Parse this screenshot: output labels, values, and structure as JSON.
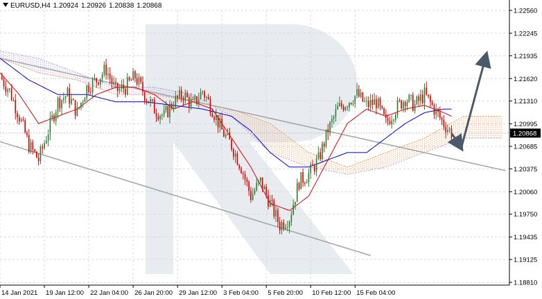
{
  "header": {
    "symbol": "EURUSD,H4",
    "open": "1.20924",
    "high": "1.20926",
    "low": "1.20838",
    "close": "1.20868"
  },
  "colors": {
    "bull": "#2e7d32",
    "bear": "#e00000",
    "tenkan": "#e00000",
    "kijun": "#0000e0",
    "cloud_bull": "#f0a060",
    "cloud_bear": "#b0a0d8",
    "channel": "#a8a8a8",
    "arrow": "#4a5a6a",
    "price_label_bg": "#000000",
    "watermark": "#e8ecf0"
  },
  "chart_data": {
    "type": "candlestick",
    "ylim": [
      1.1881,
      1.2256
    ],
    "y_ticks": [
      "1.22560",
      "1.22245",
      "1.21935",
      "1.21620",
      "1.21310",
      "1.20995",
      "1.20685",
      "1.20375",
      "1.20060",
      "1.19750",
      "1.19435",
      "1.19125",
      "1.18810"
    ],
    "x_ticks": [
      "14 Jan 2021",
      "19 Jan 12:00",
      "22 Jan 04:00",
      "26 Jan 20:00",
      "29 Jan 12:00",
      "3 Feb 04:00",
      "5 Feb 20:00",
      "10 Feb 12:00",
      "15 Feb 04:00"
    ],
    "current_price": "1.20868",
    "close_path": [
      [
        0,
        1.2165
      ],
      [
        5,
        1.2145
      ],
      [
        10,
        1.211
      ],
      [
        15,
        1.207
      ],
      [
        20,
        1.205
      ],
      [
        25,
        1.209
      ],
      [
        30,
        1.213
      ],
      [
        35,
        1.214
      ],
      [
        40,
        1.2115
      ],
      [
        45,
        1.215
      ],
      [
        50,
        1.216
      ],
      [
        55,
        1.2175
      ],
      [
        60,
        1.2145
      ],
      [
        65,
        1.215
      ],
      [
        70,
        1.2165
      ],
      [
        75,
        1.214
      ],
      [
        80,
        1.212
      ],
      [
        85,
        1.211
      ],
      [
        90,
        1.213
      ],
      [
        95,
        1.214
      ],
      [
        100,
        1.2125
      ],
      [
        105,
        1.2145
      ],
      [
        110,
        1.212
      ],
      [
        115,
        1.209
      ],
      [
        120,
        1.207
      ],
      [
        125,
        1.204
      ],
      [
        130,
        1.2
      ],
      [
        135,
        1.202
      ],
      [
        140,
        1.199
      ],
      [
        145,
        1.196
      ],
      [
        150,
        1.197
      ],
      [
        155,
        1.202
      ],
      [
        160,
        1.203
      ],
      [
        165,
        1.205
      ],
      [
        170,
        1.209
      ],
      [
        175,
        1.212
      ],
      [
        180,
        1.213
      ],
      [
        185,
        1.214
      ],
      [
        190,
        1.2125
      ],
      [
        195,
        1.213
      ],
      [
        200,
        1.21
      ],
      [
        205,
        1.212
      ],
      [
        210,
        1.2135
      ],
      [
        215,
        1.2125
      ],
      [
        220,
        1.214
      ],
      [
        225,
        1.212
      ],
      [
        230,
        1.21
      ],
      [
        234,
        1.2087
      ]
    ],
    "tenkan_path": [
      [
        0,
        1.217
      ],
      [
        10,
        1.214
      ],
      [
        20,
        1.21
      ],
      [
        30,
        1.211
      ],
      [
        40,
        1.212
      ],
      [
        50,
        1.214
      ],
      [
        60,
        1.215
      ],
      [
        70,
        1.215
      ],
      [
        80,
        1.214
      ],
      [
        90,
        1.212
      ],
      [
        100,
        1.213
      ],
      [
        110,
        1.212
      ],
      [
        120,
        1.208
      ],
      [
        130,
        1.204
      ],
      [
        140,
        1.199
      ],
      [
        150,
        1.198
      ],
      [
        160,
        1.2
      ],
      [
        170,
        1.205
      ],
      [
        180,
        1.21
      ],
      [
        190,
        1.212
      ],
      [
        200,
        1.211
      ],
      [
        210,
        1.212
      ],
      [
        220,
        1.2125
      ],
      [
        230,
        1.2115
      ],
      [
        234,
        1.211
      ]
    ],
    "kijun_path": [
      [
        0,
        1.219
      ],
      [
        15,
        1.216
      ],
      [
        30,
        1.214
      ],
      [
        45,
        1.214
      ],
      [
        60,
        1.213
      ],
      [
        75,
        1.213
      ],
      [
        90,
        1.2125
      ],
      [
        105,
        1.212
      ],
      [
        120,
        1.211
      ],
      [
        130,
        1.209
      ],
      [
        140,
        1.206
      ],
      [
        150,
        1.204
      ],
      [
        160,
        1.204
      ],
      [
        170,
        1.205
      ],
      [
        180,
        1.206
      ],
      [
        190,
        1.206
      ],
      [
        200,
        1.208
      ],
      [
        210,
        1.21
      ],
      [
        220,
        1.2115
      ],
      [
        230,
        1.212
      ],
      [
        234,
        1.212
      ]
    ],
    "cloud_a": [
      [
        0,
        1.219
      ],
      [
        20,
        1.217
      ],
      [
        40,
        1.216
      ],
      [
        60,
        1.214
      ],
      [
        80,
        1.214
      ],
      [
        100,
        1.213
      ],
      [
        120,
        1.212
      ],
      [
        140,
        1.21
      ],
      [
        160,
        1.206
      ],
      [
        180,
        1.204
      ],
      [
        200,
        1.206
      ],
      [
        220,
        1.208
      ],
      [
        240,
        1.211
      ],
      [
        260,
        1.211
      ]
    ],
    "cloud_b": [
      [
        0,
        1.22
      ],
      [
        20,
        1.219
      ],
      [
        40,
        1.217
      ],
      [
        60,
        1.215
      ],
      [
        80,
        1.215
      ],
      [
        100,
        1.214
      ],
      [
        120,
        1.211
      ],
      [
        140,
        1.206
      ],
      [
        160,
        1.204
      ],
      [
        180,
        1.203
      ],
      [
        200,
        1.204
      ],
      [
        220,
        1.206
      ],
      [
        240,
        1.208
      ],
      [
        260,
        1.208
      ]
    ],
    "channel_upper": [
      [
        0,
        1.219
      ],
      [
        262,
        1.2035
      ]
    ],
    "channel_lower": [
      [
        0,
        1.2075
      ],
      [
        192,
        1.1918
      ]
    ],
    "forecast_arrows": [
      [
        [
          234,
          1.2087
        ],
        [
          239,
          1.2066
        ]
      ],
      [
        [
          239,
          1.2066
        ],
        [
          252,
          1.2195
        ]
      ]
    ]
  }
}
